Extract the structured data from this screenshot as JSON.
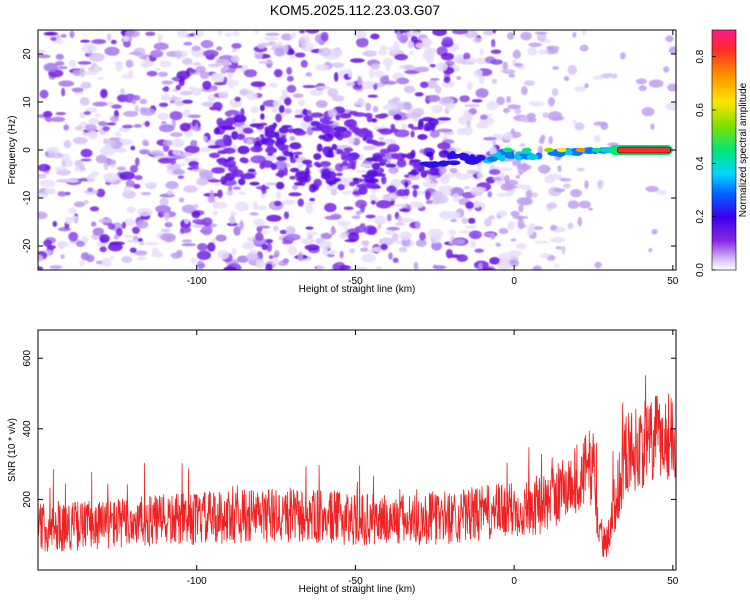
{
  "title": "KOM5.2025.112.23.03.G07",
  "chart_data": [
    {
      "type": "heatmap",
      "xlabel": "Height of straight line (km)",
      "ylabel": "Frequency (Hz)",
      "xlim": [
        -150,
        51
      ],
      "ylim": [
        -25,
        25
      ],
      "x_ticks": [
        -100,
        -50,
        0,
        50
      ],
      "y_ticks": [
        -20,
        -10,
        0,
        10,
        20
      ],
      "colorbar": {
        "label": "Normalized spectral amplitude",
        "range": [
          0,
          0.9
        ],
        "ticks": [
          0.0,
          0.2,
          0.4,
          0.6,
          0.8
        ]
      },
      "features": {
        "signal_line_frequency_hz": 0,
        "signal_x_range_km": [
          -30,
          50
        ],
        "strong_signal_x_range_km": [
          30,
          50
        ],
        "peak_amplitude": 0.9
      }
    },
    {
      "type": "line",
      "xlabel": "Height of straight line (km)",
      "ylabel": "SNR (10 * v/v)",
      "xlim": [
        -150,
        51
      ],
      "ylim": [
        0,
        680
      ],
      "x_ticks": [
        -100,
        -50,
        0,
        50
      ],
      "y_ticks": [
        200,
        400,
        600
      ],
      "series": [
        {
          "color": "#ee2222",
          "trend": [
            [
              -150,
              120
            ],
            [
              -120,
              135
            ],
            [
              -100,
              145
            ],
            [
              -80,
              155
            ],
            [
              -60,
              150
            ],
            [
              -40,
              140
            ],
            [
              -20,
              150
            ],
            [
              0,
              170
            ],
            [
              10,
              190
            ],
            [
              20,
              260
            ],
            [
              25,
              300
            ],
            [
              27,
              80
            ],
            [
              30,
              110
            ],
            [
              35,
              330
            ],
            [
              45,
              370
            ],
            [
              51,
              390
            ]
          ],
          "noise_amplitude": 70
        }
      ]
    }
  ]
}
